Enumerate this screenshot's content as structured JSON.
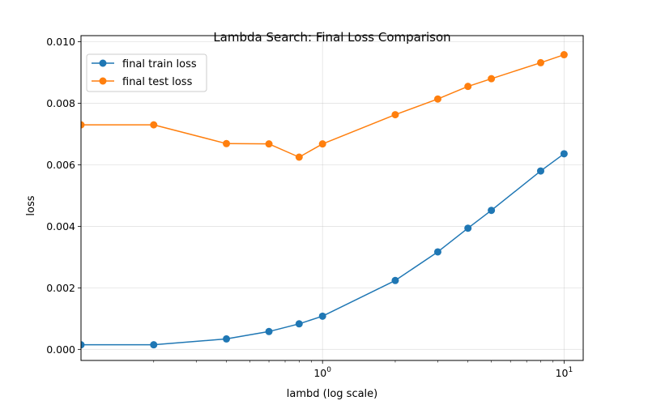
{
  "chart_data": {
    "type": "line",
    "title": "Lambda Search: Final Loss Comparison",
    "xlabel": "lambd (log scale)",
    "ylabel": "loss",
    "x_scale": "log",
    "xlim": [
      0.1,
      12
    ],
    "ylim": [
      -0.00036,
      0.0102
    ],
    "x": [
      0.1,
      0.2,
      0.4,
      0.6,
      0.8,
      1.0,
      2.0,
      3.0,
      4.0,
      5.0,
      8.0,
      10.0
    ],
    "x_ticks": [
      {
        "value": 1,
        "base": "10",
        "exp": "0"
      },
      {
        "value": 10,
        "base": "10",
        "exp": "1"
      }
    ],
    "y_ticks": [
      {
        "value": 0.0,
        "label": "0.000"
      },
      {
        "value": 0.002,
        "label": "0.002"
      },
      {
        "value": 0.004,
        "label": "0.004"
      },
      {
        "value": 0.006,
        "label": "0.006"
      },
      {
        "value": 0.008,
        "label": "0.008"
      },
      {
        "value": 0.01,
        "label": "0.010"
      }
    ],
    "grid": true,
    "legend_position": "top-left",
    "series": [
      {
        "name": "final train loss",
        "color": "#1f77b4",
        "values": [
          0.00015,
          0.00015,
          0.00034,
          0.00058,
          0.00083,
          0.00108,
          0.00224,
          0.00317,
          0.00394,
          0.00452,
          0.0058,
          0.00636
        ]
      },
      {
        "name": "final test loss",
        "color": "#ff7f0e",
        "values": [
          0.0073,
          0.0073,
          0.00669,
          0.00668,
          0.00625,
          0.00668,
          0.00763,
          0.00814,
          0.00855,
          0.0088,
          0.00932,
          0.00958
        ]
      }
    ]
  }
}
